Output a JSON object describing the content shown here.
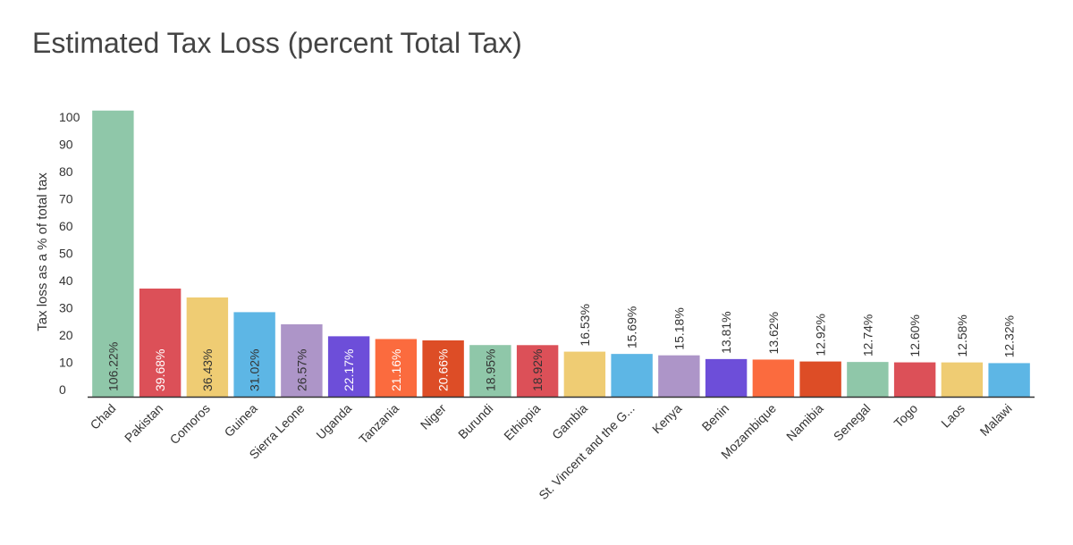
{
  "chart_data": {
    "type": "bar",
    "title": "Estimated Tax Loss (percent Total Tax)",
    "ylabel": "Tax loss as a % of total tax",
    "xlabel": "",
    "ylim": [
      0,
      105
    ],
    "yticks": [
      0,
      10,
      20,
      30,
      40,
      50,
      60,
      70,
      80,
      90,
      100
    ],
    "grid": false,
    "legend": "none",
    "categories": [
      "Chad",
      "Pakistan",
      "Comoros",
      "Guinea",
      "Sierra Leone",
      "Uganda",
      "Tanzania",
      "Niger",
      "Burundi",
      "Ethiopia",
      "Gambia",
      "St. Vincent and the G...",
      "Kenya",
      "Benin",
      "Mozambique",
      "Namibia",
      "Senegal",
      "Togo",
      "Laos",
      "Malawi"
    ],
    "values": [
      106.22,
      39.68,
      36.43,
      31.02,
      26.57,
      22.17,
      21.16,
      20.66,
      18.95,
      18.92,
      16.53,
      15.69,
      15.18,
      13.81,
      13.62,
      12.92,
      12.74,
      12.6,
      12.58,
      12.32
    ],
    "data_labels": [
      "106.22%",
      "39.68%",
      "36.43%",
      "31.02%",
      "26.57%",
      "22.17%",
      "21.16%",
      "20.66%",
      "18.95%",
      "18.92%",
      "16.53%",
      "15.69%",
      "15.18%",
      "13.81%",
      "13.62%",
      "12.92%",
      "12.74%",
      "12.60%",
      "12.58%",
      "12.32%"
    ],
    "label_position": [
      "inside",
      "inside",
      "inside",
      "inside",
      "inside",
      "inside",
      "inside",
      "inside",
      "inside",
      "inside",
      "outside",
      "outside",
      "outside",
      "outside",
      "outside",
      "outside",
      "outside",
      "outside",
      "outside",
      "outside"
    ],
    "colors": [
      "#8fc7a9",
      "#dc5058",
      "#efcc73",
      "#5db6e5",
      "#ad95c8",
      "#6d4ed9",
      "#fb6b3e",
      "#dd4d26",
      "#8fc7a9",
      "#dc5058",
      "#efcc73",
      "#5db6e5",
      "#ad95c8",
      "#6d4ed9",
      "#fb6b3e",
      "#dd4d26",
      "#8fc7a9",
      "#dc5058",
      "#efcc73",
      "#5db6e5"
    ],
    "label_colors": [
      "#333333",
      "#ffffff",
      "#333333",
      "#333333",
      "#333333",
      "#ffffff",
      "#ffffff",
      "#ffffff",
      "#333333",
      "#333333",
      "#333333",
      "#333333",
      "#333333",
      "#333333",
      "#333333",
      "#333333",
      "#333333",
      "#333333",
      "#333333",
      "#333333"
    ]
  }
}
